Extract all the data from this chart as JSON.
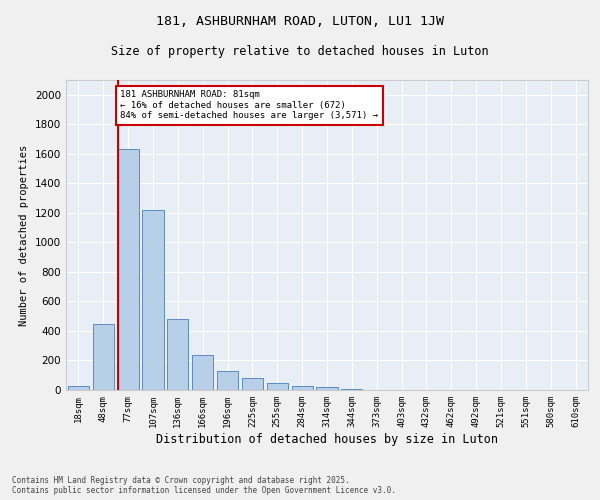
{
  "title1": "181, ASHBURNHAM ROAD, LUTON, LU1 1JW",
  "title2": "Size of property relative to detached houses in Luton",
  "xlabel": "Distribution of detached houses by size in Luton",
  "ylabel": "Number of detached properties",
  "categories": [
    "18sqm",
    "48sqm",
    "77sqm",
    "107sqm",
    "136sqm",
    "166sqm",
    "196sqm",
    "225sqm",
    "255sqm",
    "284sqm",
    "314sqm",
    "344sqm",
    "373sqm",
    "403sqm",
    "432sqm",
    "462sqm",
    "492sqm",
    "521sqm",
    "551sqm",
    "580sqm",
    "610sqm"
  ],
  "values": [
    30,
    450,
    1630,
    1220,
    480,
    240,
    130,
    80,
    50,
    30,
    18,
    5,
    3,
    2,
    1,
    1,
    0,
    0,
    0,
    0,
    0
  ],
  "bar_color": "#b8cfe8",
  "bar_edge_color": "#5b8ac4",
  "bg_color": "#e8eef5",
  "grid_color": "#ffffff",
  "property_line_color": "#cc0000",
  "annotation_text": "181 ASHBURNHAM ROAD: 81sqm\n← 16% of detached houses are smaller (672)\n84% of semi-detached houses are larger (3,571) →",
  "annotation_box_color": "#cc0000",
  "ylim": [
    0,
    2100
  ],
  "yticks": [
    0,
    200,
    400,
    600,
    800,
    1000,
    1200,
    1400,
    1600,
    1800,
    2000
  ],
  "footnote1": "Contains HM Land Registry data © Crown copyright and database right 2025.",
  "footnote2": "Contains public sector information licensed under the Open Government Licence v3.0.",
  "fig_bg": "#f0f0f0"
}
